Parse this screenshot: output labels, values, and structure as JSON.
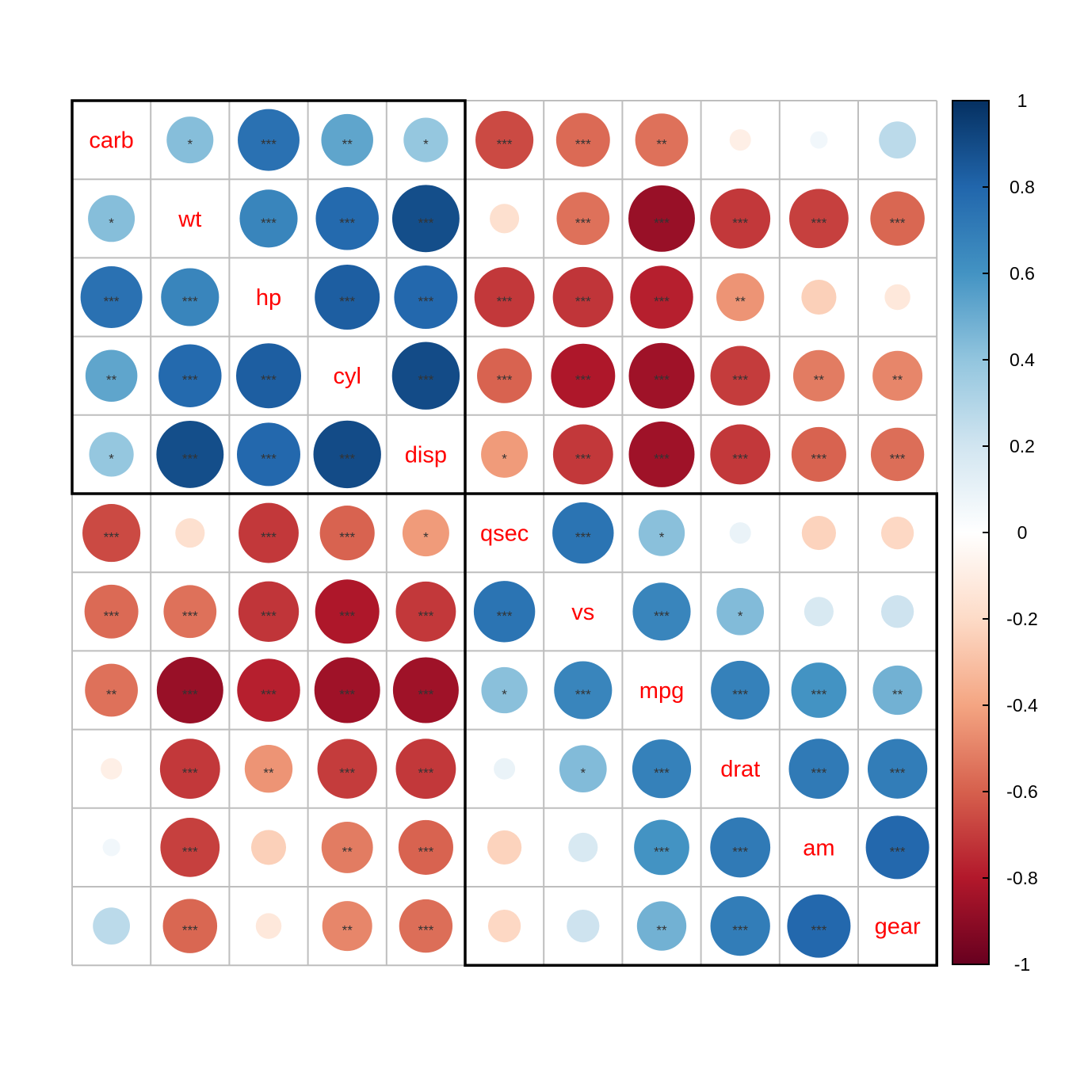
{
  "chart_data": {
    "type": "heatmap",
    "style": "corrplot-circle",
    "variables": [
      "carb",
      "wt",
      "hp",
      "cyl",
      "disp",
      "qsec",
      "vs",
      "mpg",
      "drat",
      "am",
      "gear"
    ],
    "matrix": [
      [
        1.0,
        0.43,
        0.75,
        0.53,
        0.39,
        -0.66,
        -0.57,
        -0.55,
        -0.09,
        0.06,
        0.27
      ],
      [
        0.43,
        1.0,
        0.66,
        0.78,
        0.89,
        -0.17,
        -0.55,
        -0.87,
        -0.71,
        -0.69,
        -0.58
      ],
      [
        0.75,
        0.66,
        1.0,
        0.83,
        0.79,
        -0.71,
        -0.72,
        -0.78,
        -0.45,
        -0.24,
        -0.13
      ],
      [
        0.53,
        0.78,
        0.83,
        1.0,
        0.9,
        -0.59,
        -0.81,
        -0.85,
        -0.7,
        -0.52,
        -0.49
      ],
      [
        0.39,
        0.89,
        0.79,
        0.9,
        1.0,
        -0.43,
        -0.71,
        -0.85,
        -0.71,
        -0.59,
        -0.56
      ],
      [
        -0.66,
        -0.17,
        -0.71,
        -0.59,
        -0.43,
        1.0,
        0.74,
        0.42,
        0.09,
        -0.23,
        -0.21
      ],
      [
        -0.57,
        -0.55,
        -0.72,
        -0.81,
        -0.71,
        0.74,
        1.0,
        0.66,
        0.44,
        0.17,
        0.21
      ],
      [
        -0.55,
        -0.87,
        -0.78,
        -0.85,
        -0.85,
        0.42,
        0.66,
        1.0,
        0.68,
        0.6,
        0.48
      ],
      [
        -0.09,
        -0.71,
        -0.45,
        -0.7,
        -0.71,
        0.09,
        0.44,
        0.68,
        1.0,
        0.71,
        0.7
      ],
      [
        0.06,
        -0.69,
        -0.24,
        -0.52,
        -0.59,
        -0.23,
        0.17,
        0.6,
        0.71,
        1.0,
        0.79
      ],
      [
        0.27,
        -0.58,
        -0.13,
        -0.49,
        -0.56,
        -0.21,
        0.21,
        0.48,
        0.7,
        0.79,
        1.0
      ]
    ],
    "significance": [
      [
        "",
        "*",
        "***",
        "**",
        "*",
        "***",
        "***",
        "**",
        "",
        "",
        ""
      ],
      [
        "*",
        "",
        "***",
        "***",
        "***",
        "",
        "***",
        "***",
        "***",
        "***",
        "***"
      ],
      [
        "***",
        "***",
        "",
        "***",
        "***",
        "***",
        "***",
        "***",
        "**",
        "",
        ""
      ],
      [
        "**",
        "***",
        "***",
        "",
        "***",
        "***",
        "***",
        "***",
        "***",
        "**",
        "**"
      ],
      [
        "*",
        "***",
        "***",
        "***",
        "",
        "*",
        "***",
        "***",
        "***",
        "***",
        "***"
      ],
      [
        "***",
        "",
        "***",
        "***",
        "*",
        "",
        "***",
        "*",
        "",
        "",
        ""
      ],
      [
        "***",
        "***",
        "***",
        "***",
        "***",
        "***",
        "",
        "***",
        "*",
        "",
        ""
      ],
      [
        "**",
        "***",
        "***",
        "***",
        "***",
        "*",
        "***",
        "",
        "***",
        "***",
        "**"
      ],
      [
        "",
        "***",
        "**",
        "***",
        "***",
        "",
        "*",
        "***",
        "",
        "***",
        "***"
      ],
      [
        "",
        "***",
        "",
        "**",
        "***",
        "",
        "",
        "***",
        "***",
        "",
        "***"
      ],
      [
        "",
        "***",
        "",
        "**",
        "***",
        "",
        "",
        "**",
        "***",
        "***",
        ""
      ]
    ],
    "clusters": [
      {
        "from": "carb",
        "to": "disp"
      },
      {
        "from": "qsec",
        "to": "gear"
      }
    ],
    "colorbar": {
      "min": -1,
      "max": 1,
      "ticks": [
        "1",
        "0.8",
        "0.6",
        "0.4",
        "0.2",
        "0",
        "-0.2",
        "-0.4",
        "-0.6",
        "-0.8",
        "-1"
      ],
      "colors": [
        "#67001f",
        "#b2182b",
        "#d6604d",
        "#f4a582",
        "#fddbc7",
        "#ffffff",
        "#d1e5f0",
        "#92c5de",
        "#4393c3",
        "#2166ac",
        "#053061"
      ]
    },
    "label_color": "#ff0000",
    "significance_color": "#333333",
    "grid": true,
    "legend": "right"
  }
}
